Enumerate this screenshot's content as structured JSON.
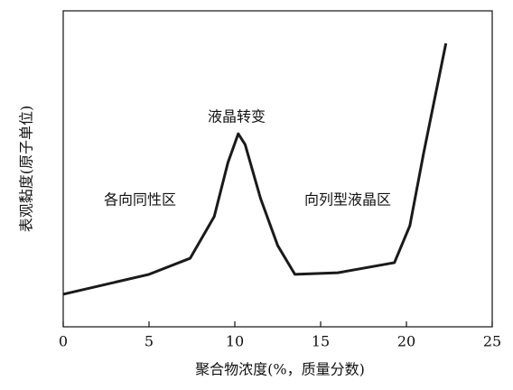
{
  "chart_data": {
    "type": "line",
    "x_label": "聚合物浓度(%，质量分数)",
    "y_label": "表观黏度(原子单位)",
    "annotations": [
      "液晶转变",
      "各向同性区",
      "向列型液晶区"
    ],
    "x": [
      0,
      5,
      7.4,
      8.8,
      9.6,
      10.2,
      10.6,
      11.5,
      12.5,
      13.5,
      16,
      19.3,
      20.2,
      21,
      22.3
    ],
    "series": [
      {
        "color": "#1a1a1a",
        "values": [
          10.3,
          16.6,
          21.7,
          34.9,
          52,
          61.1,
          57.7,
          40.6,
          25.7,
          16.6,
          17.1,
          20.3,
          32,
          54.9,
          89.7
        ]
      }
    ],
    "xlim": [
      0,
      25
    ],
    "xticks": [
      0,
      5,
      10,
      15,
      20,
      25
    ],
    "ylim": [
      0,
      100
    ]
  }
}
